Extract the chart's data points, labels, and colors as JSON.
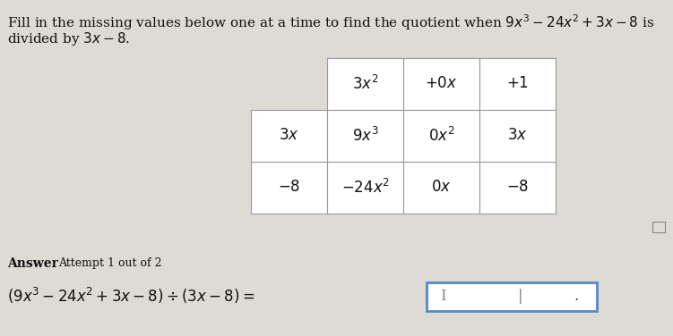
{
  "bg_color": "#c8c4bc",
  "content_bg": "#dedad4",
  "title_text1": "Fill in the missing values below one at a time to find the quotient when ",
  "title_math": "$9x^3 - 24x^2 + 3x - 8$ is",
  "title_text2": "divided by $3x - 8$.",
  "title_fontsize": 11,
  "table": {
    "header_row": [
      "$3x^2$",
      "$+0x$",
      "$+1$"
    ],
    "row1_label": "$3x$",
    "row1_data": [
      "$9x^3$",
      "$0x^2$",
      "$3x$"
    ],
    "row2_label": "$-8$",
    "row2_data": [
      "$-24x^2$",
      "$0x$",
      "$-8$"
    ]
  },
  "answer_label": "Answer",
  "attempt_label": "Attempt 1 out of 2",
  "equation_lhs": "$(9x^3 - 24x^2 + 3x - 8) \\div (3x - 8) =$",
  "cursor_text": "I",
  "separator_text": "|",
  "dot_text": ".",
  "input_border_color": "#5588cc",
  "white": "#ffffff",
  "black": "#111111",
  "dark_gray": "#444444",
  "mid_gray": "#888888",
  "cell_border": "#999999",
  "table_fontsize": 12,
  "answer_fontsize": 10,
  "eq_fontsize": 12
}
